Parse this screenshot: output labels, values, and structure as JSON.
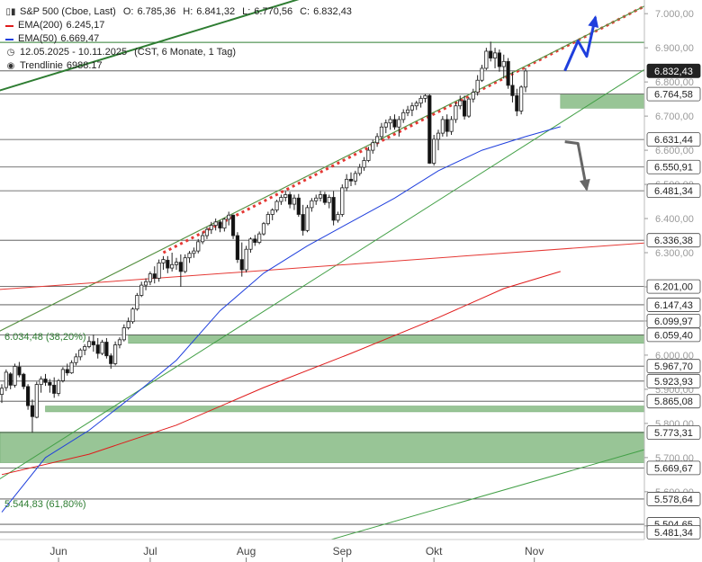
{
  "legend": {
    "instrument": "S&P 500 (Cboe, Last)",
    "open_label": "O:",
    "open": "6.785,36",
    "high_label": "H:",
    "high": "6.841,32",
    "low_label": "L:",
    "low": "6.770,56",
    "close_label": "C:",
    "close": "6.832,43",
    "ema200_label": "EMA(200)",
    "ema200_value": "6.245,17",
    "ema200_color": "#e01b1b",
    "ema50_label": "EMA(50)",
    "ema50_value": "6.669,47",
    "ema50_color": "#1f3fdd",
    "period": "12.05.2025 - 10.11.2025",
    "period_detail": "(CST, 6 Monate, 1 Tag)",
    "trend_label": "Trendlinie",
    "trend_value": "6988.17"
  },
  "chart_data": {
    "type": "candlestick",
    "y_range": [
      5460,
      7040
    ],
    "y_ticks": [
      {
        "v": 7000,
        "t": "7.000,00"
      },
      {
        "v": 6900,
        "t": "6.900,00"
      },
      {
        "v": 6800,
        "t": "6.800,00"
      },
      {
        "v": 6700,
        "t": "6.700,00"
      },
      {
        "v": 6600,
        "t": "6.600,00"
      },
      {
        "v": 6500,
        "t": "6.500,00"
      },
      {
        "v": 6400,
        "t": "6.400,00"
      },
      {
        "v": 6300,
        "t": "6.300,00"
      },
      {
        "v": 6200,
        "t": "6.200,00"
      },
      {
        "v": 6100,
        "t": "6.100,00"
      },
      {
        "v": 6000,
        "t": "6.000,00"
      },
      {
        "v": 5900,
        "t": "5.900,00"
      },
      {
        "v": 5800,
        "t": "5.800,00"
      },
      {
        "v": 5700,
        "t": "5.700,00"
      },
      {
        "v": 5600,
        "t": "5.600,00"
      },
      {
        "v": 5500,
        "t": "5.500,00"
      }
    ],
    "x_labels": [
      {
        "label": "Jun",
        "idx": 13
      },
      {
        "label": "Jul",
        "idx": 34
      },
      {
        "label": "Aug",
        "idx": 56
      },
      {
        "label": "Sep",
        "idx": 78
      },
      {
        "label": "Okt",
        "idx": 99
      },
      {
        "label": "Nov",
        "idx": 122
      }
    ],
    "levels": [
      {
        "value": 6916,
        "label": "",
        "color": "#2e7d32"
      },
      {
        "value": 6832.43,
        "label": "6.832,43",
        "style": "current"
      },
      {
        "value": 6764.58,
        "label": "6.764,58"
      },
      {
        "value": 6631.44,
        "label": "6.631,44"
      },
      {
        "value": 6550.91,
        "label": "6.550,91"
      },
      {
        "value": 6481.34,
        "label": "6.481,34"
      },
      {
        "value": 6336.38,
        "label": "6.336,38"
      },
      {
        "value": 6201.0,
        "label": "6.201,00"
      },
      {
        "value": 6147.43,
        "label": "6.147,43"
      },
      {
        "value": 6099.97,
        "label": "6.099,97"
      },
      {
        "value": 6059.4,
        "label": "6.059,40"
      },
      {
        "value": 5967.7,
        "label": "5.967,70"
      },
      {
        "value": 5923.93,
        "label": "5.923,93"
      },
      {
        "value": 5865.08,
        "label": "5.865,08"
      },
      {
        "value": 5773.31,
        "label": "5.773,31"
      },
      {
        "value": 5669.67,
        "label": "5.669,67"
      },
      {
        "value": 5578.64,
        "label": "5.578,64"
      },
      {
        "value": 5504.65,
        "label": "5.504,65"
      },
      {
        "value": 5481.34,
        "label": "5.481,34"
      }
    ],
    "zones": [
      {
        "from": 6723,
        "to": 6764.58,
        "start_idx": 128
      },
      {
        "from": 6034.48,
        "to": 6059.4,
        "start_idx": 29
      },
      {
        "from": 5834,
        "to": 5851,
        "start_idx": 10
      },
      {
        "from": 5685,
        "to": 5775,
        "start_idx": -2
      }
    ],
    "fib_labels": [
      {
        "value": 6034.48,
        "text": "6.034,48 (38,20%)"
      },
      {
        "value": 5544.83,
        "text": "5.544,83 (61,80%)"
      }
    ],
    "candles": [
      [
        5885,
        5915,
        5860,
        5903
      ],
      [
        5905,
        5958,
        5895,
        5950
      ],
      [
        5945,
        5950,
        5900,
        5912
      ],
      [
        5912,
        5975,
        5905,
        5967
      ],
      [
        5965,
        5980,
        5935,
        5942
      ],
      [
        5944,
        5948,
        5900,
        5908
      ],
      [
        5908,
        5915,
        5840,
        5852
      ],
      [
        5852,
        5870,
        5773,
        5820
      ],
      [
        5818,
        5922,
        5815,
        5914
      ],
      [
        5914,
        5938,
        5890,
        5930
      ],
      [
        5930,
        5945,
        5910,
        5920
      ],
      [
        5920,
        5930,
        5890,
        5912
      ],
      [
        5912,
        5935,
        5875,
        5888
      ],
      [
        5888,
        5930,
        5880,
        5925
      ],
      [
        5925,
        5965,
        5920,
        5958
      ],
      [
        5958,
        5975,
        5940,
        5948
      ],
      [
        5948,
        5985,
        5945,
        5978
      ],
      [
        5978,
        6005,
        5970,
        5995
      ],
      [
        5995,
        6020,
        5985,
        6015
      ],
      [
        6015,
        6032,
        6000,
        6025
      ],
      [
        6025,
        6055,
        6020,
        6040
      ],
      [
        6040,
        6060,
        6010,
        6030
      ],
      [
        6030,
        6050,
        5990,
        6005
      ],
      [
        6005,
        6045,
        6000,
        6038
      ],
      [
        6038,
        6050,
        5990,
        5998
      ],
      [
        5998,
        6005,
        5960,
        5975
      ],
      [
        5975,
        6040,
        5970,
        6030
      ],
      [
        6030,
        6052,
        6020,
        6045
      ],
      [
        6045,
        6090,
        6040,
        6080
      ],
      [
        6080,
        6110,
        6075,
        6098
      ],
      [
        6098,
        6140,
        6092,
        6135
      ],
      [
        6135,
        6182,
        6130,
        6175
      ],
      [
        6175,
        6215,
        6170,
        6205
      ],
      [
        6205,
        6225,
        6190,
        6215
      ],
      [
        6215,
        6245,
        6205,
        6238
      ],
      [
        6238,
        6260,
        6210,
        6225
      ],
      [
        6225,
        6280,
        6215,
        6270
      ],
      [
        6270,
        6290,
        6250,
        6280
      ],
      [
        6278,
        6290,
        6240,
        6255
      ],
      [
        6255,
        6300,
        6245,
        6265
      ],
      [
        6265,
        6285,
        6250,
        6272
      ],
      [
        6272,
        6295,
        6200,
        6245
      ],
      [
        6245,
        6295,
        6240,
        6285
      ],
      [
        6285,
        6305,
        6270,
        6298
      ],
      [
        6298,
        6315,
        6285,
        6305
      ],
      [
        6305,
        6340,
        6298,
        6332
      ],
      [
        6332,
        6360,
        6325,
        6350
      ],
      [
        6350,
        6375,
        6340,
        6368
      ],
      [
        6368,
        6390,
        6355,
        6380
      ],
      [
        6380,
        6400,
        6365,
        6390
      ],
      [
        6390,
        6395,
        6360,
        6372
      ],
      [
        6372,
        6402,
        6362,
        6398
      ],
      [
        6398,
        6420,
        6380,
        6410
      ],
      [
        6410,
        6412,
        6340,
        6350
      ],
      [
        6350,
        6360,
        6270,
        6280
      ],
      [
        6280,
        6330,
        6230,
        6250
      ],
      [
        6250,
        6320,
        6242,
        6310
      ],
      [
        6310,
        6345,
        6300,
        6340
      ],
      [
        6340,
        6352,
        6320,
        6330
      ],
      [
        6330,
        6362,
        6325,
        6355
      ],
      [
        6355,
        6390,
        6350,
        6385
      ],
      [
        6385,
        6420,
        6380,
        6412
      ],
      [
        6412,
        6430,
        6395,
        6425
      ],
      [
        6425,
        6455,
        6418,
        6450
      ],
      [
        6450,
        6470,
        6440,
        6462
      ],
      [
        6462,
        6480,
        6450,
        6470
      ],
      [
        6470,
        6478,
        6430,
        6442
      ],
      [
        6442,
        6470,
        6425,
        6460
      ],
      [
        6460,
        6472,
        6405,
        6412
      ],
      [
        6412,
        6440,
        6350,
        6365
      ],
      [
        6365,
        6440,
        6360,
        6432
      ],
      [
        6432,
        6460,
        6420,
        6452
      ],
      [
        6452,
        6470,
        6440,
        6460
      ],
      [
        6460,
        6480,
        6450,
        6470
      ],
      [
        6470,
        6478,
        6440,
        6447
      ],
      [
        6447,
        6470,
        6430,
        6462
      ],
      [
        6462,
        6480,
        6380,
        6395
      ],
      [
        6395,
        6420,
        6388,
        6412
      ],
      [
        6412,
        6500,
        6405,
        6490
      ],
      [
        6490,
        6530,
        6480,
        6515
      ],
      [
        6515,
        6535,
        6495,
        6510
      ],
      [
        6510,
        6540,
        6498,
        6532
      ],
      [
        6532,
        6560,
        6525,
        6550
      ],
      [
        6550,
        6580,
        6540,
        6570
      ],
      [
        6570,
        6610,
        6565,
        6600
      ],
      [
        6600,
        6630,
        6590,
        6622
      ],
      [
        6622,
        6650,
        6610,
        6640
      ],
      [
        6640,
        6680,
        6630,
        6668
      ],
      [
        6668,
        6690,
        6650,
        6680
      ],
      [
        6680,
        6700,
        6660,
        6690
      ],
      [
        6690,
        6705,
        6660,
        6668
      ],
      [
        6668,
        6700,
        6640,
        6690
      ],
      [
        6690,
        6720,
        6680,
        6710
      ],
      [
        6710,
        6730,
        6700,
        6718
      ],
      [
        6718,
        6740,
        6700,
        6730
      ],
      [
        6730,
        6745,
        6718,
        6738
      ],
      [
        6738,
        6760,
        6725,
        6752
      ],
      [
        6752,
        6765,
        6740,
        6760
      ],
      [
        6760,
        6765,
        6560,
        6562
      ],
      [
        6562,
        6645,
        6555,
        6632
      ],
      [
        6632,
        6660,
        6600,
        6650
      ],
      [
        6650,
        6700,
        6640,
        6690
      ],
      [
        6690,
        6705,
        6640,
        6655
      ],
      [
        6655,
        6700,
        6645,
        6690
      ],
      [
        6690,
        6740,
        6680,
        6730
      ],
      [
        6730,
        6760,
        6720,
        6745
      ],
      [
        6745,
        6760,
        6690,
        6700
      ],
      [
        6700,
        6755,
        6695,
        6750
      ],
      [
        6750,
        6780,
        6740,
        6770
      ],
      [
        6770,
        6820,
        6760,
        6805
      ],
      [
        6805,
        6850,
        6800,
        6840
      ],
      [
        6840,
        6900,
        6835,
        6890
      ],
      [
        6890,
        6918,
        6860,
        6870
      ],
      [
        6870,
        6900,
        6840,
        6885
      ],
      [
        6885,
        6895,
        6830,
        6845
      ],
      [
        6845,
        6880,
        6810,
        6860
      ],
      [
        6860,
        6870,
        6780,
        6790
      ],
      [
        6790,
        6830,
        6740,
        6760
      ],
      [
        6760,
        6780,
        6700,
        6715
      ],
      [
        6715,
        6790,
        6705,
        6785
      ],
      [
        6785,
        6841,
        6770,
        6832
      ]
    ],
    "ema50": [
      [
        0,
        5540
      ],
      [
        10,
        5700
      ],
      [
        20,
        5780
      ],
      [
        30,
        5880
      ],
      [
        40,
        5985
      ],
      [
        50,
        6130
      ],
      [
        60,
        6240
      ],
      [
        70,
        6320
      ],
      [
        80,
        6390
      ],
      [
        90,
        6460
      ],
      [
        100,
        6540
      ],
      [
        110,
        6600
      ],
      [
        120,
        6640
      ],
      [
        128,
        6669
      ]
    ],
    "ema200": [
      [
        0,
        5650
      ],
      [
        20,
        5710
      ],
      [
        40,
        5795
      ],
      [
        60,
        5905
      ],
      [
        80,
        6005
      ],
      [
        100,
        6110
      ],
      [
        115,
        6195
      ],
      [
        128,
        6245
      ]
    ],
    "trendlines": [
      {
        "name": "red-channel-top",
        "color": "#e53935",
        "width": 1,
        "points": [
          [
            -30,
            5880
          ],
          [
            150,
            7040
          ]
        ]
      },
      {
        "name": "red-dotted-trendline",
        "color": "#e53935",
        "width": 3,
        "dash": "3,4",
        "points": [
          [
            37,
            6300
          ],
          [
            150,
            7040
          ]
        ]
      },
      {
        "name": "green-channel-mid",
        "color": "#43a047",
        "width": 1,
        "points": [
          [
            -30,
            5880
          ],
          [
            150,
            7040
          ]
        ]
      },
      {
        "name": "green-channel-lower",
        "color": "#43a047",
        "width": 1,
        "points": [
          [
            -10,
            5560
          ],
          [
            160,
            6940
          ]
        ]
      },
      {
        "name": "red-long-support",
        "color": "#e53935",
        "width": 1,
        "points": [
          [
            -30,
            6165
          ],
          [
            160,
            6340
          ]
        ]
      },
      {
        "name": "green-long-support",
        "color": "#43a047",
        "width": 1,
        "points": [
          [
            70,
            5440
          ],
          [
            160,
            5770
          ]
        ]
      },
      {
        "name": "green-thick-top",
        "color": "#2e7d32",
        "width": 2,
        "points": [
          [
            -30,
            6660
          ],
          [
            70,
            7050
          ]
        ]
      }
    ],
    "projections": [
      {
        "name": "bullish-projection",
        "color": "#1f3fdd",
        "points": [
          [
            129,
            6833
          ],
          [
            132,
            6920
          ],
          [
            134,
            6875
          ],
          [
            136,
            6990
          ]
        ]
      },
      {
        "name": "bearish-projection",
        "color": "#666666",
        "points": [
          [
            129,
            6625
          ],
          [
            132,
            6620
          ],
          [
            134,
            6485
          ]
        ]
      }
    ]
  }
}
